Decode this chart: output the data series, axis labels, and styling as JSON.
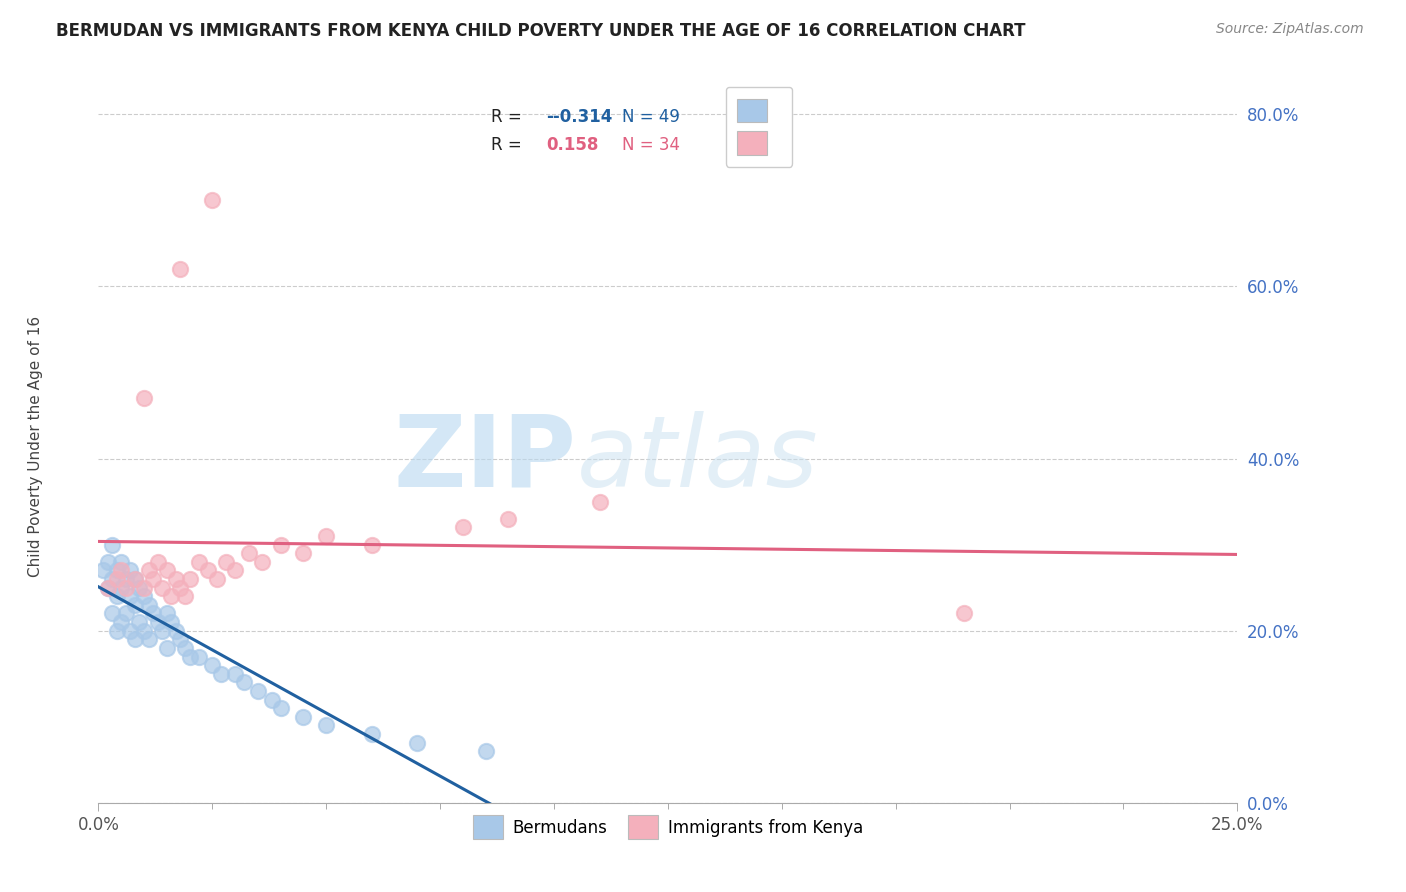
{
  "title": "BERMUDAN VS IMMIGRANTS FROM KENYA CHILD POVERTY UNDER THE AGE OF 16 CORRELATION CHART",
  "source": "Source: ZipAtlas.com",
  "ylabel": "Child Poverty Under the Age of 16",
  "xlim": [
    0.0,
    0.25
  ],
  "ylim": [
    0.0,
    0.85
  ],
  "ytick_vals": [
    0.0,
    0.2,
    0.4,
    0.6,
    0.8
  ],
  "xtick_vals": [
    0.0,
    0.25
  ],
  "legend1_R": "-0.314",
  "legend1_N": "49",
  "legend2_R": "0.158",
  "legend2_N": "34",
  "legend_bottom_label1": "Bermudans",
  "legend_bottom_label2": "Immigrants from Kenya",
  "bermudan_color": "#a8c8e8",
  "kenya_color": "#f4b0bc",
  "bermudan_line_color": "#2060a0",
  "kenya_line_color": "#e06080",
  "watermark_color": "#d0e8f5",
  "background_color": "#ffffff",
  "grid_color": "#cccccc",
  "ytick_color": "#4472c4",
  "title_color": "#222222",
  "source_color": "#888888",
  "bermudan_x": [
    0.001,
    0.002,
    0.002,
    0.003,
    0.003,
    0.003,
    0.004,
    0.004,
    0.004,
    0.005,
    0.005,
    0.005,
    0.006,
    0.006,
    0.007,
    0.007,
    0.007,
    0.008,
    0.008,
    0.008,
    0.009,
    0.009,
    0.01,
    0.01,
    0.011,
    0.011,
    0.012,
    0.013,
    0.014,
    0.015,
    0.015,
    0.016,
    0.017,
    0.018,
    0.019,
    0.02,
    0.022,
    0.025,
    0.027,
    0.03,
    0.032,
    0.035,
    0.038,
    0.04,
    0.045,
    0.05,
    0.06,
    0.07,
    0.085
  ],
  "bermudan_y": [
    0.27,
    0.28,
    0.25,
    0.3,
    0.26,
    0.22,
    0.27,
    0.24,
    0.2,
    0.28,
    0.25,
    0.21,
    0.26,
    0.22,
    0.27,
    0.24,
    0.2,
    0.26,
    0.23,
    0.19,
    0.25,
    0.21,
    0.24,
    0.2,
    0.23,
    0.19,
    0.22,
    0.21,
    0.2,
    0.22,
    0.18,
    0.21,
    0.2,
    0.19,
    0.18,
    0.17,
    0.17,
    0.16,
    0.15,
    0.15,
    0.14,
    0.13,
    0.12,
    0.11,
    0.1,
    0.09,
    0.08,
    0.07,
    0.06
  ],
  "kenya_x": [
    0.002,
    0.004,
    0.005,
    0.006,
    0.008,
    0.01,
    0.011,
    0.012,
    0.013,
    0.014,
    0.015,
    0.016,
    0.017,
    0.018,
    0.019,
    0.02,
    0.022,
    0.024,
    0.026,
    0.028,
    0.03,
    0.033,
    0.036,
    0.04,
    0.045,
    0.05,
    0.06,
    0.08,
    0.09,
    0.11,
    0.01,
    0.018,
    0.025,
    0.19
  ],
  "kenya_y": [
    0.25,
    0.26,
    0.27,
    0.25,
    0.26,
    0.25,
    0.27,
    0.26,
    0.28,
    0.25,
    0.27,
    0.24,
    0.26,
    0.25,
    0.24,
    0.26,
    0.28,
    0.27,
    0.26,
    0.28,
    0.27,
    0.29,
    0.28,
    0.3,
    0.29,
    0.31,
    0.3,
    0.32,
    0.33,
    0.35,
    0.47,
    0.62,
    0.7,
    0.22
  ],
  "bermudan_line_x0": 0.0,
  "bermudan_line_x1": 0.13,
  "bermudan_line_x_dash_end": 0.25,
  "kenya_line_x0": 0.0,
  "kenya_line_x1": 0.25
}
